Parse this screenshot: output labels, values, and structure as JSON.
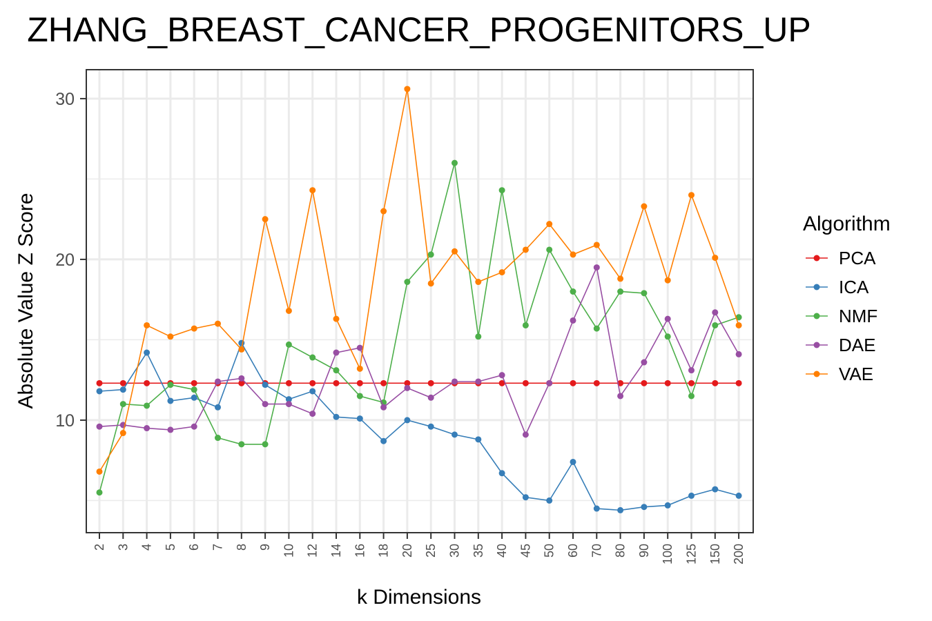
{
  "chart_data": {
    "type": "line",
    "title": "ZHANG_BREAST_CANCER_PROGENITORS_UP",
    "xlabel": "k Dimensions",
    "ylabel": "Absolute Value Z Score",
    "categories": [
      "2",
      "3",
      "4",
      "5",
      "6",
      "7",
      "8",
      "9",
      "10",
      "12",
      "14",
      "16",
      "18",
      "20",
      "25",
      "30",
      "35",
      "40",
      "45",
      "50",
      "60",
      "70",
      "80",
      "90",
      "100",
      "125",
      "150",
      "200"
    ],
    "yticks": [
      10,
      20,
      30
    ],
    "ylim": [
      3.0,
      31.8
    ],
    "grid": true,
    "legend": {
      "title": "Algorithm",
      "placement": "right"
    },
    "series": [
      {
        "name": "PCA",
        "color": "#e41a1c",
        "values": [
          12.3,
          12.3,
          12.3,
          12.3,
          12.3,
          12.3,
          12.3,
          12.3,
          12.3,
          12.3,
          12.3,
          12.3,
          12.3,
          12.3,
          12.3,
          12.3,
          12.3,
          12.3,
          12.3,
          12.3,
          12.3,
          12.3,
          12.3,
          12.3,
          12.3,
          12.3,
          12.3,
          12.3
        ]
      },
      {
        "name": "ICA",
        "color": "#377eb8",
        "values": [
          11.8,
          11.9,
          14.2,
          11.2,
          11.4,
          10.8,
          14.8,
          12.2,
          11.3,
          11.8,
          10.2,
          10.1,
          8.7,
          10.0,
          9.6,
          9.1,
          8.8,
          6.7,
          5.2,
          5.0,
          7.4,
          4.5,
          4.4,
          4.6,
          4.7,
          5.3,
          5.7,
          5.3
        ]
      },
      {
        "name": "NMF",
        "color": "#4daf4a",
        "values": [
          5.5,
          11.0,
          10.9,
          12.2,
          11.9,
          8.9,
          8.5,
          8.5,
          14.7,
          13.9,
          13.1,
          11.5,
          11.1,
          18.6,
          20.3,
          26.0,
          15.2,
          24.3,
          15.9,
          20.6,
          18.0,
          15.7,
          18.0,
          17.9,
          15.2,
          11.5,
          15.9,
          16.4
        ]
      },
      {
        "name": "DAE",
        "color": "#984ea3",
        "values": [
          9.6,
          9.7,
          9.5,
          9.4,
          9.6,
          12.4,
          12.6,
          11.0,
          11.0,
          10.4,
          14.2,
          14.5,
          10.8,
          12.0,
          11.4,
          12.4,
          12.4,
          12.8,
          9.1,
          12.3,
          16.2,
          19.5,
          11.5,
          13.6,
          16.3,
          13.1,
          16.7,
          14.1
        ]
      },
      {
        "name": "VAE",
        "color": "#ff7f00",
        "values": [
          6.8,
          9.2,
          15.9,
          15.2,
          15.7,
          16.0,
          14.4,
          22.5,
          16.8,
          24.3,
          16.3,
          13.2,
          23.0,
          30.6,
          18.5,
          20.5,
          18.6,
          19.2,
          20.6,
          22.2,
          20.3,
          20.9,
          18.8,
          23.3,
          18.7,
          24.0,
          20.1,
          15.9
        ]
      }
    ]
  }
}
